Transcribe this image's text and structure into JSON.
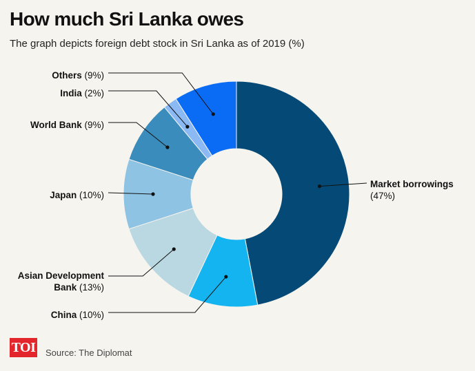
{
  "header": {
    "title": "How much Sri Lanka owes",
    "subtitle": "The graph depicts foreign debt stock in Sri Lanka as of 2019 (%)"
  },
  "footer": {
    "logo_text": "TOI",
    "source": "Source: The Diplomat"
  },
  "chart_data": {
    "type": "pie",
    "style": "donut",
    "title": "How much Sri Lanka owes",
    "subtitle": "The graph depicts foreign debt stock in Sri Lanka as of 2019 (%)",
    "unit": "%",
    "slices": [
      {
        "name": "Market borrowings",
        "value": 47,
        "color": "#054a76",
        "label_lines": [
          "Market borrowings",
          "(47%)"
        ],
        "label_side": "right"
      },
      {
        "name": "China",
        "value": 10,
        "color": "#14b4f0",
        "label_lines": [
          "China (10%)"
        ],
        "label_side": "left"
      },
      {
        "name": "Asian Development Bank",
        "value": 13,
        "color": "#bad8e2",
        "label_lines": [
          "Asian Development",
          "Bank (13%)"
        ],
        "label_side": "left"
      },
      {
        "name": "Japan",
        "value": 10,
        "color": "#8ec3e4",
        "label_lines": [
          "Japan (10%)"
        ],
        "label_side": "left"
      },
      {
        "name": "World Bank",
        "value": 9,
        "color": "#3a8cbc",
        "label_lines": [
          "World Bank (9%)"
        ],
        "label_side": "left"
      },
      {
        "name": "India",
        "value": 2,
        "color": "#8bb9f3",
        "label_lines": [
          "India (2%)"
        ],
        "label_side": "left"
      },
      {
        "name": "Others",
        "value": 9,
        "color": "#0a6cf5",
        "label_lines": [
          "Others (9%)"
        ],
        "label_side": "left"
      }
    ],
    "legend": "none"
  }
}
